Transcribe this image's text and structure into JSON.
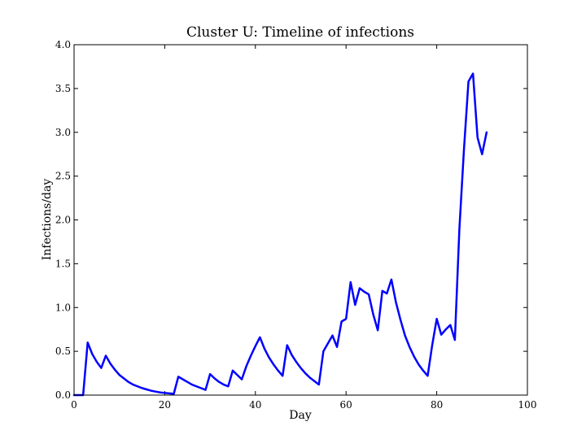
{
  "chart_data": {
    "type": "line",
    "title": "Cluster U: Timeline of infections",
    "xlabel": "Day",
    "ylabel": "Infections/day",
    "xlim": [
      0,
      100
    ],
    "ylim": [
      0.0,
      4.0
    ],
    "xticks": [
      "0",
      "20",
      "40",
      "60",
      "80",
      "100"
    ],
    "xtick_values": [
      0,
      20,
      40,
      60,
      80,
      100
    ],
    "yticks": [
      "0.0",
      "0.5",
      "1.0",
      "1.5",
      "2.0",
      "2.5",
      "3.0",
      "3.5",
      "4.0"
    ],
    "ytick_values": [
      0.0,
      0.5,
      1.0,
      1.5,
      2.0,
      2.5,
      3.0,
      3.5,
      4.0
    ],
    "grid": false,
    "legend": "none",
    "series": [
      {
        "color": "#0000ff",
        "x": [
          0,
          1,
          2,
          3,
          4,
          5,
          6,
          7,
          8,
          9,
          10,
          11,
          12,
          13,
          14,
          15,
          16,
          17,
          18,
          19,
          20,
          21,
          22,
          23,
          24,
          25,
          26,
          27,
          28,
          29,
          30,
          31,
          32,
          33,
          34,
          35,
          36,
          37,
          38,
          39,
          40,
          41,
          42,
          43,
          44,
          45,
          46,
          47,
          48,
          49,
          50,
          51,
          52,
          53,
          54,
          55,
          56,
          57,
          58,
          59,
          60,
          61,
          62,
          63,
          64,
          65,
          66,
          67,
          68,
          69,
          70,
          71,
          72,
          73,
          74,
          75,
          76,
          77,
          78,
          79,
          80,
          81,
          82,
          83,
          84,
          85,
          86,
          87,
          88,
          89,
          90,
          91
        ],
        "y": [
          0,
          0,
          0,
          0.6,
          0.47,
          0.38,
          0.31,
          0.45,
          0.36,
          0.29,
          0.23,
          0.19,
          0.15,
          0.12,
          0.1,
          0.08,
          0.065,
          0.05,
          0.04,
          0.03,
          0.025,
          0.02,
          0.015,
          0.21,
          0.18,
          0.15,
          0.12,
          0.1,
          0.08,
          0.06,
          0.24,
          0.19,
          0.15,
          0.12,
          0.1,
          0.28,
          0.23,
          0.18,
          0.33,
          0.45,
          0.56,
          0.66,
          0.53,
          0.43,
          0.35,
          0.28,
          0.22,
          0.57,
          0.46,
          0.38,
          0.31,
          0.25,
          0.2,
          0.16,
          0.12,
          0.5,
          0.59,
          0.68,
          0.55,
          0.84,
          0.87,
          1.29,
          1.03,
          1.22,
          1.18,
          1.15,
          0.92,
          0.74,
          1.19,
          1.16,
          1.32,
          1.06,
          0.86,
          0.68,
          0.55,
          0.44,
          0.35,
          0.28,
          0.22,
          0.57,
          0.87,
          0.69,
          0.75,
          0.8,
          0.63,
          1.9,
          2.8,
          3.58,
          3.67,
          2.94,
          2.75,
          3.0
        ]
      }
    ]
  }
}
